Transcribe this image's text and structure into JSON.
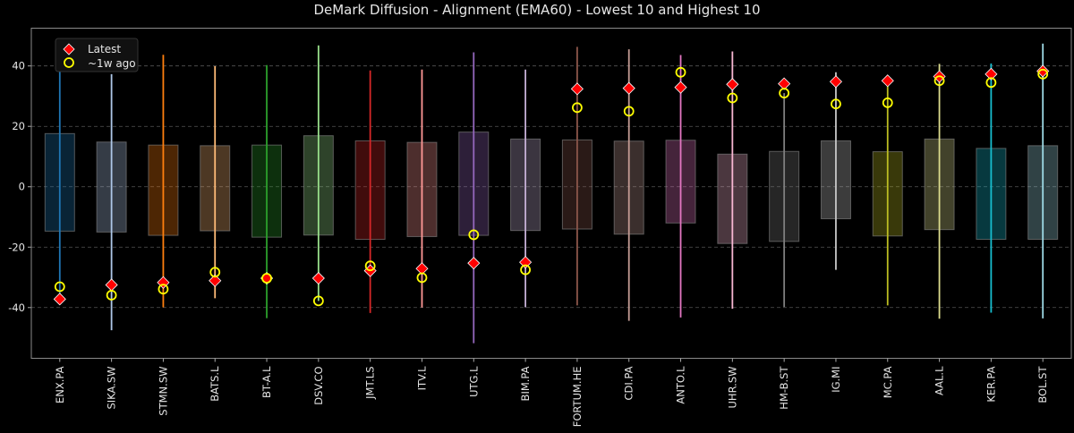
{
  "chart_data": {
    "type": "range-box",
    "title": "DeMark Diffusion - Alignment (EMA60) - Lowest 10 and Highest 10",
    "xlabel": "",
    "ylabel": "",
    "ylim": [
      -56.8,
      52.5
    ],
    "yticks": [
      -40,
      -20,
      0,
      20,
      40
    ],
    "grid": "horizontal dashed",
    "legend_position": "top-left",
    "legend": [
      {
        "label": "Latest",
        "marker": "diamond",
        "color": "#ff0000"
      },
      {
        "label": "~1w ago",
        "marker": "open-circle",
        "color": "#ffff00"
      }
    ],
    "categories": [
      "ENX.PA",
      "SIKA.SW",
      "STMN.SW",
      "BATS.L",
      "BT-A.L",
      "DSV.CO",
      "JMT.LS",
      "ITV.L",
      "UTG.L",
      "BIM.PA",
      "FORTUM.HE",
      "CDI.PA",
      "ANTO.L",
      "UHR.SW",
      "HM-B.ST",
      "IG.MI",
      "MC.PA",
      "AAL.L",
      "KER.PA",
      "BOL.ST"
    ],
    "colors": [
      "#1f77b4",
      "#aec7e8",
      "#ff7f0e",
      "#ffbb78",
      "#2ca02c",
      "#98df8a",
      "#d62728",
      "#ff9896",
      "#9467bd",
      "#c5b0d5",
      "#8c564b",
      "#c49c94",
      "#e377c2",
      "#f7b6d2",
      "#7f7f7f",
      "#c7c7c7",
      "#bcbd22",
      "#dbdb8d",
      "#17becf",
      "#9edae5"
    ],
    "range_max": [
      45.2,
      37.3,
      43.7,
      39.9,
      40.3,
      46.8,
      38.5,
      38.8,
      44.5,
      38.8,
      46.3,
      45.5,
      43.6,
      44.8,
      31.0,
      37.9,
      35.1,
      40.7,
      40.8,
      47.4
    ],
    "range_min": [
      -37.2,
      -47.5,
      -39.9,
      -36.9,
      -43.5,
      -37.8,
      -41.8,
      -40.0,
      -51.8,
      -39.9,
      -39.3,
      -44.4,
      -43.3,
      -40.4,
      -39.8,
      -27.5,
      -39.3,
      -43.7,
      -41.7,
      -43.6
    ],
    "box_upper": [
      17.6,
      14.8,
      13.8,
      13.6,
      13.8,
      16.9,
      15.2,
      14.7,
      18.1,
      15.8,
      15.5,
      15.1,
      15.4,
      10.8,
      11.7,
      15.2,
      11.6,
      15.8,
      12.7,
      13.6
    ],
    "box_lower": [
      -14.7,
      -15.0,
      -16.1,
      -14.6,
      -16.7,
      -16.0,
      -17.4,
      -16.5,
      -16.1,
      -14.5,
      -14.0,
      -15.7,
      -12.0,
      -18.8,
      -18.1,
      -10.6,
      -16.3,
      -14.2,
      -17.4,
      -17.4
    ],
    "series": [
      {
        "name": "Latest",
        "values": [
          -37.2,
          -32.5,
          -31.7,
          -31.1,
          -30.3,
          -30.3,
          -27.8,
          -27.1,
          -25.3,
          -25.0,
          32.4,
          32.6,
          32.9,
          33.9,
          34.1,
          34.8,
          35.1,
          36.5,
          37.3,
          38.3
        ]
      },
      {
        "name": "~1w ago",
        "values": [
          -33.1,
          -35.9,
          -33.9,
          -28.3,
          -30.3,
          -37.8,
          -26.2,
          -30.1,
          -15.9,
          -27.5,
          26.2,
          25.0,
          37.9,
          29.4,
          31.0,
          27.4,
          27.8,
          35.1,
          34.5,
          37.3
        ]
      }
    ]
  }
}
